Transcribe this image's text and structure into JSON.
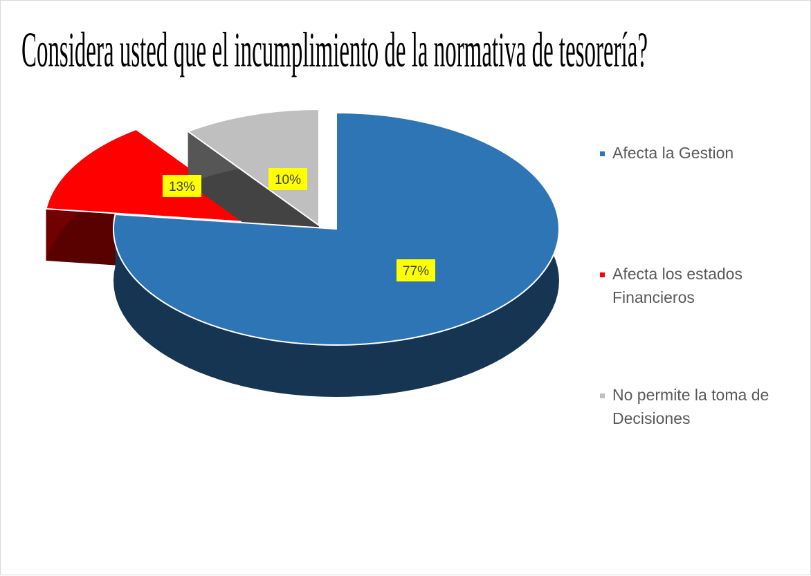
{
  "chart_data": {
    "type": "pie",
    "title": "Considera usted que el incumplimiento de la normativa de tesorería?",
    "categories": [
      "Afecta la Gestion",
      "Afecta los estados Financieros",
      "No permite la toma de Decisiones"
    ],
    "values": [
      77,
      13,
      10
    ],
    "value_labels": [
      "77%",
      "13%",
      "10%"
    ],
    "colors": [
      "#2e75b6",
      "#ff0000",
      "#bfbfbf"
    ],
    "legend": "right"
  }
}
